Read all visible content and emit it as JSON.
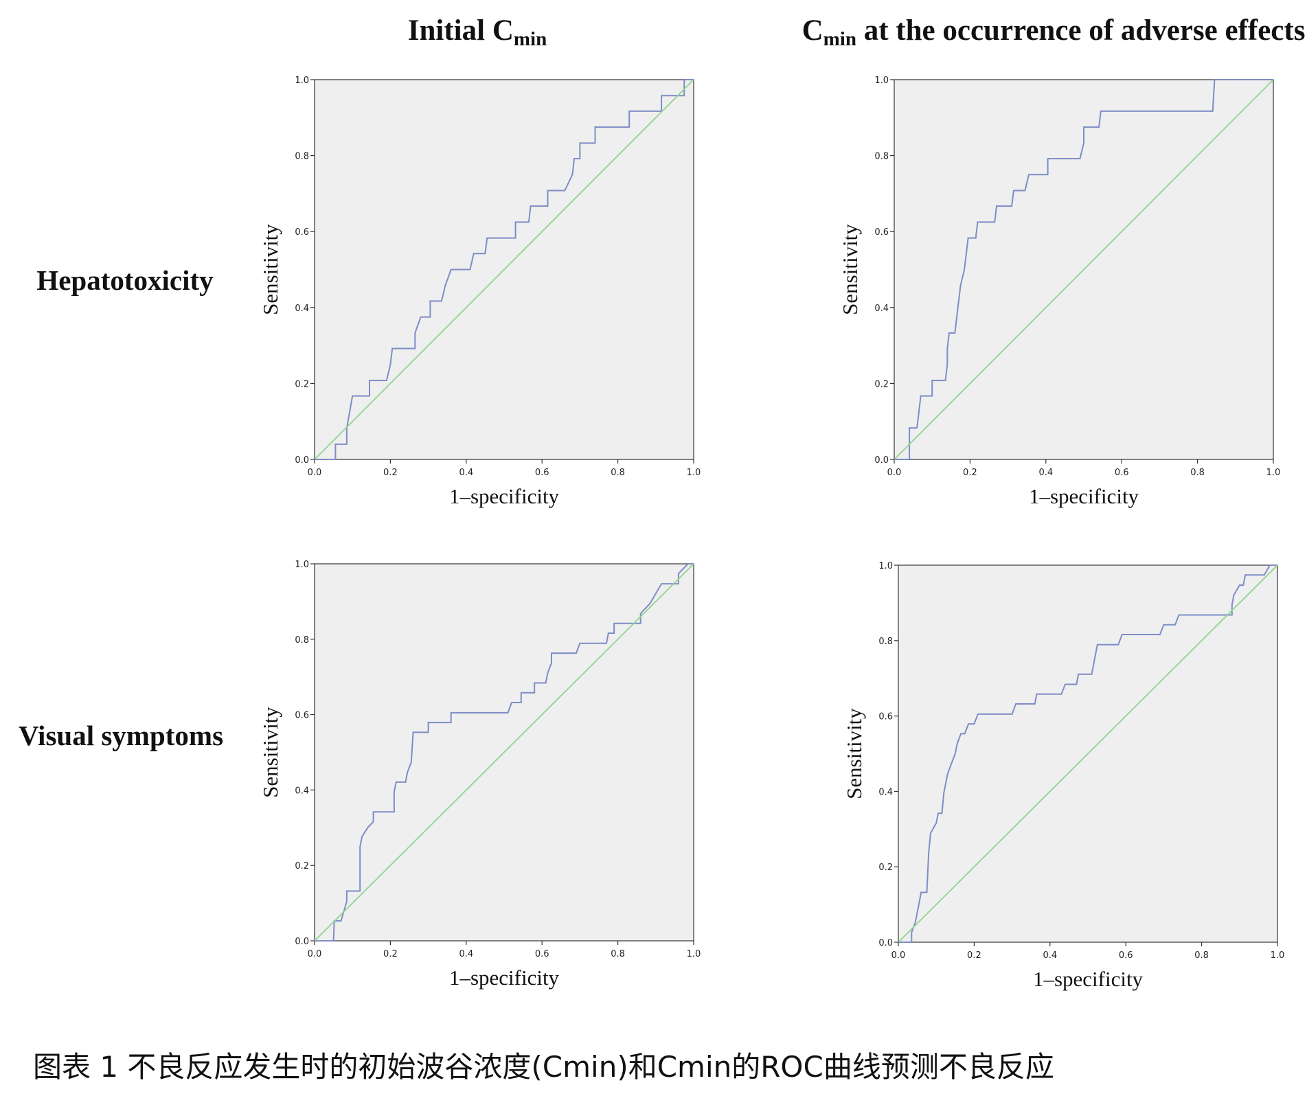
{
  "col_titles": [
    {
      "main": "Initial C",
      "sub": "min",
      "rest": ""
    },
    {
      "main": "C",
      "sub": "min",
      "rest": " at the occurrence of adverse effects"
    }
  ],
  "row_titles": [
    "Hepatotoxicity",
    "Visual symptoms"
  ],
  "caption": "图表 1 不良反应发生时的初始波谷浓度(Cmin)和Cmin的ROC曲线预测不良反应",
  "colors": {
    "roc": "#7d8dc6",
    "reference": "#8fd48f",
    "plot_bg": "#efefef"
  },
  "chart_data": [
    {
      "type": "line",
      "row": "Hepatotoxicity",
      "column": "Initial Cmin",
      "xlabel": "1–specificity",
      "ylabel": "Sensitivity",
      "xlim": [
        0,
        1
      ],
      "ylim": [
        0,
        1
      ],
      "ticks": [
        "0.0",
        "0.2",
        "0.4",
        "0.6",
        "0.8",
        "1.0"
      ],
      "grid": false,
      "series": [
        {
          "role": "roc",
          "points": [
            [
              0,
              0
            ],
            [
              0.055,
              0
            ],
            [
              0.055,
              0.04
            ],
            [
              0.085,
              0.04
            ],
            [
              0.085,
              0.083
            ],
            [
              0.1,
              0.167
            ],
            [
              0.145,
              0.167
            ],
            [
              0.145,
              0.208
            ],
            [
              0.19,
              0.208
            ],
            [
              0.2,
              0.25
            ],
            [
              0.205,
              0.292
            ],
            [
              0.265,
              0.292
            ],
            [
              0.265,
              0.333
            ],
            [
              0.28,
              0.375
            ],
            [
              0.305,
              0.375
            ],
            [
              0.305,
              0.417
            ],
            [
              0.335,
              0.417
            ],
            [
              0.345,
              0.458
            ],
            [
              0.36,
              0.5
            ],
            [
              0.41,
              0.5
            ],
            [
              0.42,
              0.542
            ],
            [
              0.45,
              0.542
            ],
            [
              0.455,
              0.583
            ],
            [
              0.53,
              0.583
            ],
            [
              0.53,
              0.625
            ],
            [
              0.565,
              0.625
            ],
            [
              0.57,
              0.667
            ],
            [
              0.615,
              0.667
            ],
            [
              0.615,
              0.708
            ],
            [
              0.66,
              0.708
            ],
            [
              0.68,
              0.75
            ],
            [
              0.685,
              0.792
            ],
            [
              0.7,
              0.792
            ],
            [
              0.7,
              0.833
            ],
            [
              0.74,
              0.833
            ],
            [
              0.74,
              0.875
            ],
            [
              0.83,
              0.875
            ],
            [
              0.83,
              0.917
            ],
            [
              0.915,
              0.917
            ],
            [
              0.915,
              0.958
            ],
            [
              0.975,
              0.958
            ],
            [
              0.975,
              1
            ],
            [
              1,
              1
            ]
          ]
        },
        {
          "role": "reference",
          "points": [
            [
              0,
              0
            ],
            [
              1,
              1
            ]
          ]
        }
      ]
    },
    {
      "type": "line",
      "row": "Hepatotoxicity",
      "column": "Cmin at the occurrence of adverse effects",
      "xlabel": "1–specificity",
      "ylabel": "Sensitivity",
      "xlim": [
        0,
        1
      ],
      "ylim": [
        0,
        1
      ],
      "ticks": [
        "0.0",
        "0.2",
        "0.4",
        "0.6",
        "0.8",
        "1.0"
      ],
      "grid": false,
      "series": [
        {
          "role": "roc",
          "points": [
            [
              0,
              0
            ],
            [
              0.04,
              0
            ],
            [
              0.04,
              0.083
            ],
            [
              0.06,
              0.083
            ],
            [
              0.065,
              0.125
            ],
            [
              0.07,
              0.167
            ],
            [
              0.1,
              0.167
            ],
            [
              0.1,
              0.208
            ],
            [
              0.135,
              0.208
            ],
            [
              0.14,
              0.25
            ],
            [
              0.14,
              0.292
            ],
            [
              0.145,
              0.333
            ],
            [
              0.16,
              0.333
            ],
            [
              0.165,
              0.375
            ],
            [
              0.17,
              0.417
            ],
            [
              0.175,
              0.458
            ],
            [
              0.185,
              0.5
            ],
            [
              0.19,
              0.542
            ],
            [
              0.195,
              0.583
            ],
            [
              0.215,
              0.583
            ],
            [
              0.22,
              0.625
            ],
            [
              0.265,
              0.625
            ],
            [
              0.27,
              0.667
            ],
            [
              0.31,
              0.667
            ],
            [
              0.315,
              0.708
            ],
            [
              0.345,
              0.708
            ],
            [
              0.355,
              0.75
            ],
            [
              0.405,
              0.75
            ],
            [
              0.405,
              0.792
            ],
            [
              0.49,
              0.792
            ],
            [
              0.5,
              0.833
            ],
            [
              0.5,
              0.875
            ],
            [
              0.54,
              0.875
            ],
            [
              0.545,
              0.917
            ],
            [
              0.84,
              0.917
            ],
            [
              0.845,
              1
            ],
            [
              1,
              1
            ]
          ]
        },
        {
          "role": "reference",
          "points": [
            [
              0,
              0
            ],
            [
              1,
              1
            ]
          ]
        }
      ]
    },
    {
      "type": "line",
      "row": "Visual symptoms",
      "column": "Initial Cmin",
      "xlabel": "1–specificity",
      "ylabel": "Sensitivity",
      "xlim": [
        0,
        1
      ],
      "ylim": [
        0,
        1
      ],
      "ticks": [
        "0.0",
        "0.2",
        "0.4",
        "0.6",
        "0.8",
        "1.0"
      ],
      "grid": false,
      "series": [
        {
          "role": "roc",
          "points": [
            [
              0,
              0
            ],
            [
              0.05,
              0
            ],
            [
              0.052,
              0.053
            ],
            [
              0.07,
              0.053
            ],
            [
              0.085,
              0.105
            ],
            [
              0.085,
              0.132
            ],
            [
              0.12,
              0.132
            ],
            [
              0.12,
              0.25
            ],
            [
              0.125,
              0.276
            ],
            [
              0.14,
              0.3
            ],
            [
              0.155,
              0.316
            ],
            [
              0.155,
              0.342
            ],
            [
              0.21,
              0.342
            ],
            [
              0.21,
              0.395
            ],
            [
              0.215,
              0.421
            ],
            [
              0.24,
              0.421
            ],
            [
              0.245,
              0.447
            ],
            [
              0.255,
              0.474
            ],
            [
              0.26,
              0.553
            ],
            [
              0.3,
              0.553
            ],
            [
              0.3,
              0.579
            ],
            [
              0.36,
              0.579
            ],
            [
              0.36,
              0.605
            ],
            [
              0.51,
              0.605
            ],
            [
              0.52,
              0.632
            ],
            [
              0.545,
              0.632
            ],
            [
              0.545,
              0.658
            ],
            [
              0.58,
              0.658
            ],
            [
              0.58,
              0.684
            ],
            [
              0.61,
              0.684
            ],
            [
              0.615,
              0.711
            ],
            [
              0.625,
              0.737
            ],
            [
              0.625,
              0.763
            ],
            [
              0.69,
              0.763
            ],
            [
              0.7,
              0.789
            ],
            [
              0.77,
              0.789
            ],
            [
              0.775,
              0.816
            ],
            [
              0.79,
              0.816
            ],
            [
              0.79,
              0.842
            ],
            [
              0.86,
              0.842
            ],
            [
              0.86,
              0.868
            ],
            [
              0.885,
              0.895
            ],
            [
              0.9,
              0.921
            ],
            [
              0.915,
              0.947
            ],
            [
              0.96,
              0.947
            ],
            [
              0.96,
              0.974
            ],
            [
              0.985,
              1
            ],
            [
              1,
              1
            ]
          ]
        },
        {
          "role": "reference",
          "points": [
            [
              0,
              0
            ],
            [
              1,
              1
            ]
          ]
        }
      ]
    },
    {
      "type": "line",
      "row": "Visual symptoms",
      "column": "Cmin at the occurrence of adverse effects",
      "xlabel": "1–specificity",
      "ylabel": "Sensitivity",
      "xlim": [
        0,
        1
      ],
      "ylim": [
        0,
        1
      ],
      "ticks": [
        "0.0",
        "0.2",
        "0.4",
        "0.6",
        "0.8",
        "1.0"
      ],
      "grid": false,
      "series": [
        {
          "role": "roc",
          "points": [
            [
              0,
              0
            ],
            [
              0.035,
              0
            ],
            [
              0.035,
              0.026
            ],
            [
              0.045,
              0.053
            ],
            [
              0.05,
              0.079
            ],
            [
              0.055,
              0.105
            ],
            [
              0.06,
              0.132
            ],
            [
              0.075,
              0.132
            ],
            [
              0.08,
              0.237
            ],
            [
              0.085,
              0.289
            ],
            [
              0.1,
              0.316
            ],
            [
              0.105,
              0.342
            ],
            [
              0.115,
              0.342
            ],
            [
              0.12,
              0.395
            ],
            [
              0.125,
              0.421
            ],
            [
              0.13,
              0.447
            ],
            [
              0.14,
              0.474
            ],
            [
              0.15,
              0.5
            ],
            [
              0.155,
              0.526
            ],
            [
              0.165,
              0.553
            ],
            [
              0.175,
              0.553
            ],
            [
              0.185,
              0.579
            ],
            [
              0.2,
              0.579
            ],
            [
              0.21,
              0.605
            ],
            [
              0.3,
              0.605
            ],
            [
              0.31,
              0.632
            ],
            [
              0.36,
              0.632
            ],
            [
              0.365,
              0.658
            ],
            [
              0.43,
              0.658
            ],
            [
              0.44,
              0.684
            ],
            [
              0.47,
              0.684
            ],
            [
              0.475,
              0.711
            ],
            [
              0.51,
              0.711
            ],
            [
              0.515,
              0.737
            ],
            [
              0.52,
              0.763
            ],
            [
              0.525,
              0.789
            ],
            [
              0.58,
              0.789
            ],
            [
              0.59,
              0.816
            ],
            [
              0.69,
              0.816
            ],
            [
              0.7,
              0.842
            ],
            [
              0.73,
              0.842
            ],
            [
              0.74,
              0.868
            ],
            [
              0.88,
              0.868
            ],
            [
              0.88,
              0.895
            ],
            [
              0.885,
              0.921
            ],
            [
              0.9,
              0.947
            ],
            [
              0.91,
              0.947
            ],
            [
              0.915,
              0.974
            ],
            [
              0.965,
              0.974
            ],
            [
              0.98,
              1
            ],
            [
              1,
              1
            ]
          ]
        },
        {
          "role": "reference",
          "points": [
            [
              0,
              0
            ],
            [
              1,
              1
            ]
          ]
        }
      ]
    }
  ]
}
